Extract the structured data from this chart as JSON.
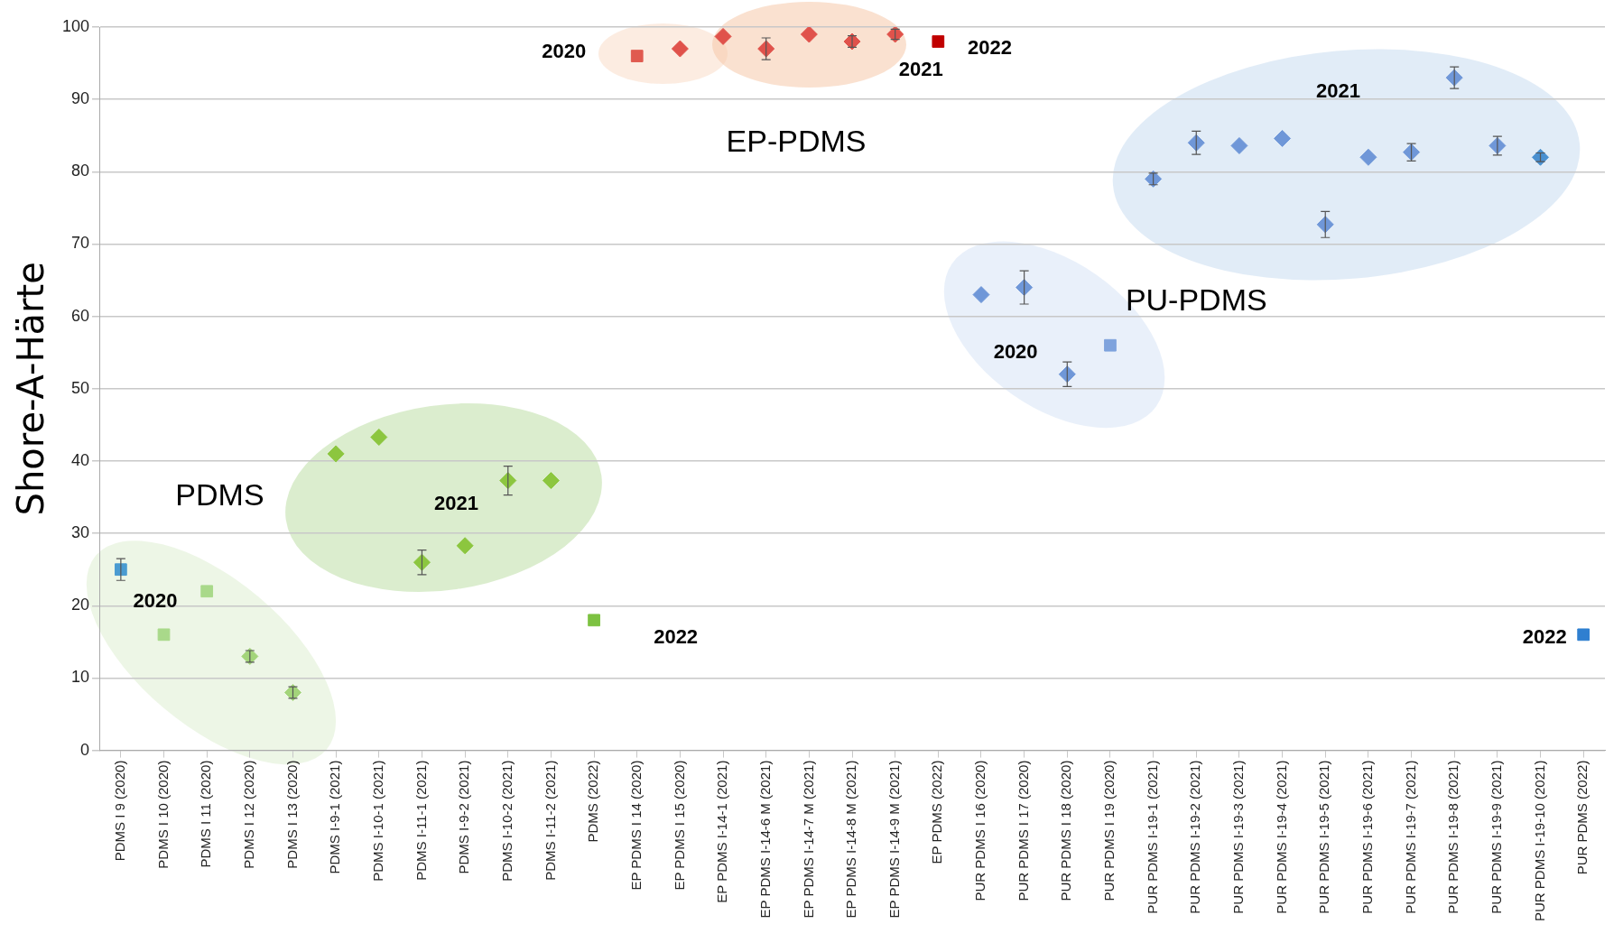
{
  "chart_data": {
    "type": "scatter",
    "ylabel": "Shore-A-Härte",
    "ylim": [
      0,
      100
    ],
    "yticks": [
      0,
      10,
      20,
      30,
      40,
      50,
      60,
      70,
      80,
      90,
      100
    ],
    "grid": "y",
    "legend": false,
    "categories": [
      "PDMS I 9 (2020)",
      "PDMS I 10 (2020)",
      "PDMS I 11 (2020)",
      "PDMS I 12 (2020)",
      "PDMS I 13 (2020)",
      "PDMS I-9-1 (2021)",
      "PDMS I-10-1 (2021)",
      "PDMS I-11-1 (2021)",
      "PDMS I-9-2 (2021)",
      "PDMS I-10-2 (2021)",
      "PDMS I-11-2 (2021)",
      "PDMS (2022)",
      "EP PDMS I 14 (2020)",
      "EP PDMS I 15 (2020)",
      "EP PDMS I-14-1 (2021)",
      "EP PDMS I-14-6 M (2021)",
      "EP PDMS I-14-7 M (2021)",
      "EP PDMS I-14-8 M (2021)",
      "EP PDMS I-14-9 M (2021)",
      "EP PDMS (2022)",
      "PUR PDMS I 16 (2020)",
      "PUR PDMS I 17 (2020)",
      "PUR PDMS I 18 (2020)",
      "PUR PDMS I 19 (2020)",
      "PUR PDMS I-19-1 (2021)",
      "PUR PDMS I-19-2 (2021)",
      "PUR PDMS I-19-3 (2021)",
      "PUR PDMS I-19-4 (2021)",
      "PUR PDMS I-19-5 (2021)",
      "PUR PDMS I-19-6 (2021)",
      "PUR PDMS I-19-7 (2021)",
      "PUR PDMS I-19-8 (2021)",
      "PUR PDMS I-19-9 (2021)",
      "PUR PDMS I-19-10 (2021)",
      "PUR PDMS (2022)"
    ],
    "series": [
      {
        "type": "scatter",
        "marker": "diamond",
        "values": [
          null,
          null,
          null,
          13,
          8,
          41,
          43.3,
          26,
          28.3,
          37.3,
          37.3,
          null,
          null,
          97,
          98.7,
          97,
          99,
          98,
          99,
          null,
          63,
          64,
          52,
          null,
          79,
          84,
          83.6,
          84.6,
          72.7,
          82,
          82.7,
          93,
          83.6,
          82,
          null
        ],
        "errors": [
          null,
          null,
          null,
          0.8,
          0.8,
          null,
          null,
          1.7,
          null,
          2,
          null,
          null,
          null,
          null,
          null,
          1.5,
          null,
          0.8,
          0.7,
          null,
          null,
          2.3,
          1.7,
          null,
          0.8,
          1.6,
          null,
          null,
          1.8,
          null,
          1.2,
          1.5,
          1.3,
          0.6,
          null
        ],
        "colors": [
          null,
          null,
          null,
          "#a3d47a",
          "#a3d47a",
          "#8cc63f",
          "#8cc63f",
          "#8cc63f",
          "#8cc63f",
          "#8cc63f",
          "#8cc63f",
          null,
          null,
          "#e0524b",
          "#e0524b",
          "#e0524b",
          "#e0524b",
          "#e0524b",
          "#e0524b",
          null,
          "#6f97d8",
          "#6f97d8",
          "#6f97d8",
          null,
          "#6f97d8",
          "#6f97d8",
          "#6f97d8",
          "#6f97d8",
          "#6f97d8",
          "#6f97d8",
          "#6f97d8",
          "#6f97d8",
          "#6f97d8",
          "#4a90d0",
          null
        ]
      },
      {
        "type": "scatter",
        "marker": "square",
        "values": [
          25,
          16,
          22,
          null,
          null,
          null,
          null,
          null,
          null,
          null,
          null,
          18,
          96,
          null,
          null,
          null,
          null,
          null,
          null,
          98,
          null,
          null,
          null,
          56,
          null,
          null,
          null,
          null,
          null,
          null,
          null,
          null,
          null,
          null,
          16
        ],
        "errors": [
          1.5,
          null,
          null,
          null,
          null,
          null,
          null,
          null,
          null,
          null,
          null,
          null,
          null,
          null,
          null,
          null,
          null,
          null,
          null,
          null,
          null,
          null,
          null,
          null,
          null,
          null,
          null,
          null,
          null,
          null,
          null,
          null,
          null,
          null,
          null
        ],
        "colors": [
          "#4a9bd1",
          "#a9d98a",
          "#a9d98a",
          null,
          null,
          null,
          null,
          null,
          null,
          null,
          null,
          "#7dc242",
          "#e05a4f",
          null,
          null,
          null,
          null,
          null,
          null,
          "#c00000",
          null,
          null,
          null,
          "#7fa3dd",
          null,
          null,
          null,
          null,
          null,
          null,
          null,
          null,
          null,
          null,
          "#2f7fd0"
        ]
      }
    ],
    "annotations": [
      "PDMS",
      "EP-PDMS",
      "PU-PDMS",
      "2020",
      "2021",
      "2022",
      "2020",
      "2021",
      "2022",
      "2020",
      "2021",
      "2022"
    ]
  }
}
